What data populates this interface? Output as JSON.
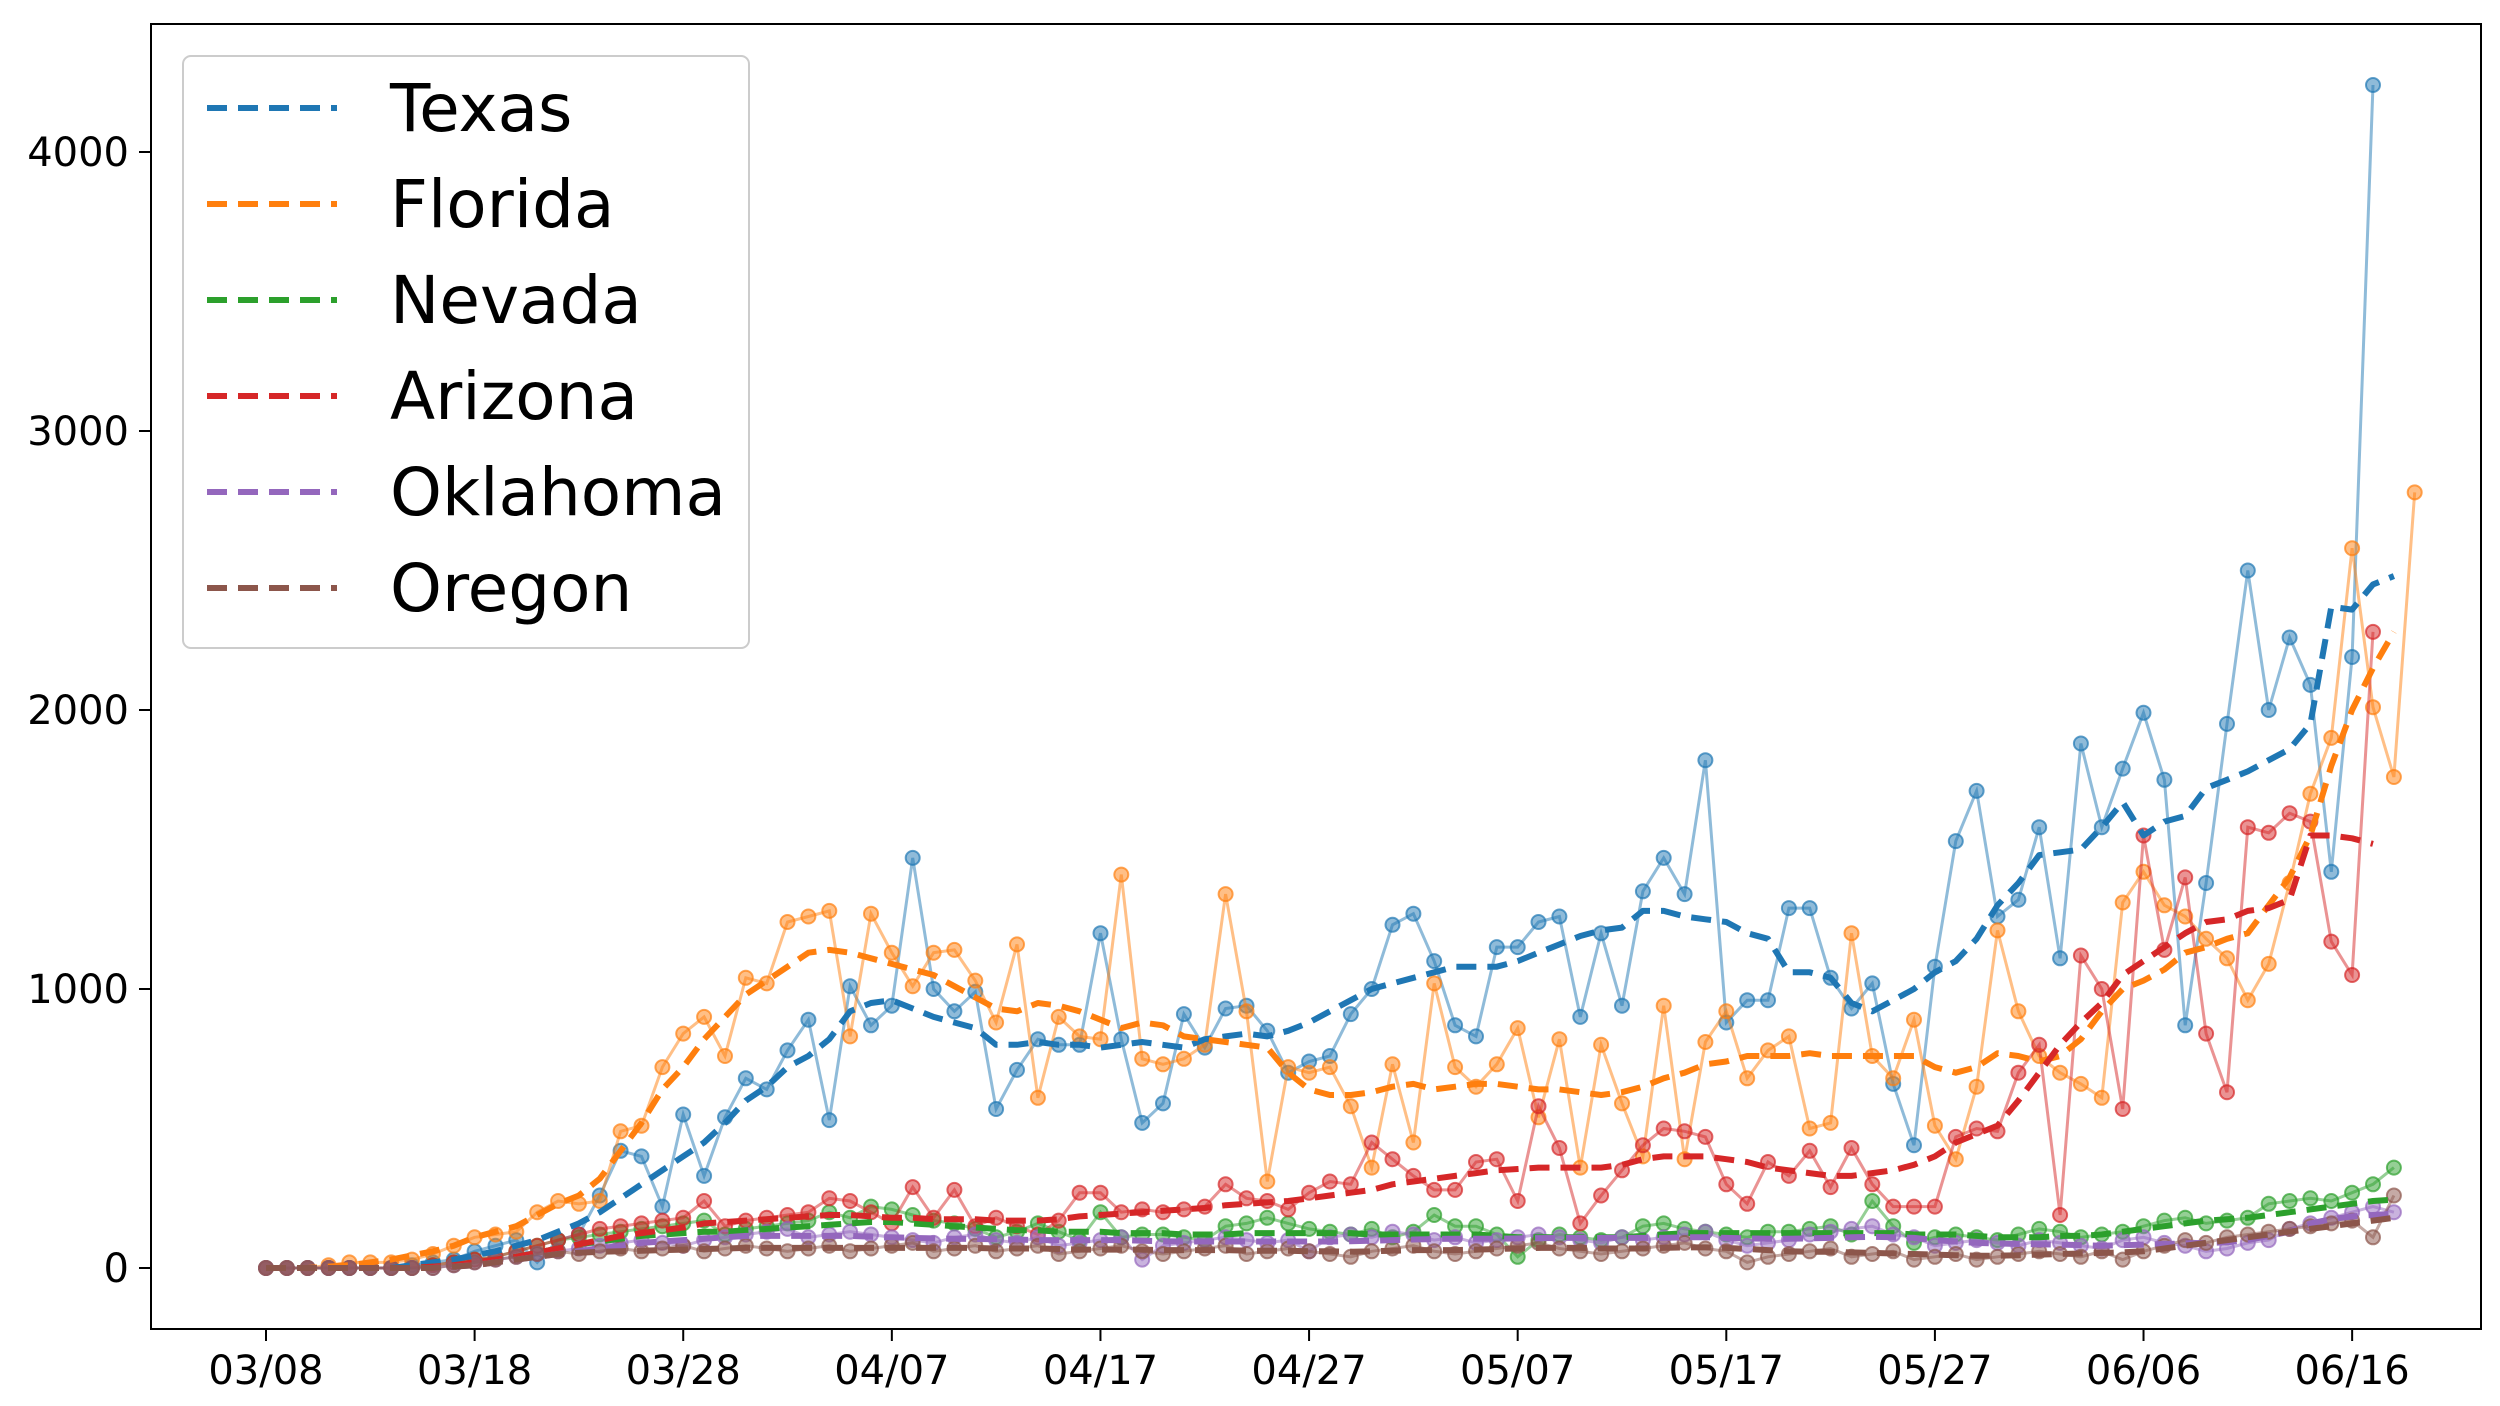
{
  "chart_data": {
    "type": "line",
    "title": "",
    "xlabel": "",
    "ylabel": "",
    "ylim": [
      -200,
      4450
    ],
    "y_ticks": [
      0,
      1000,
      2000,
      3000,
      4000
    ],
    "x_ticks": [
      "03/08",
      "03/18",
      "03/28",
      "04/07",
      "04/17",
      "04/27",
      "05/07",
      "05/17",
      "05/27",
      "06/06",
      "06/16"
    ],
    "x_start": "03/08",
    "x_end": "06/16",
    "legend_position": "upper-left",
    "grid": false,
    "series": [
      {
        "name": "Texas",
        "color": "#1f77b4",
        "daily": [
          0,
          0,
          0,
          0,
          0,
          0,
          0,
          10,
          20,
          30,
          60,
          80,
          100,
          20,
          100,
          120,
          260,
          420,
          400,
          220,
          550,
          330,
          540,
          680,
          640,
          780,
          890,
          530,
          1010,
          870,
          940,
          1470,
          1000,
          920,
          990,
          570,
          710,
          820,
          800,
          800,
          1200,
          820,
          520,
          590,
          910,
          790,
          930,
          940,
          850,
          700,
          740,
          760,
          910,
          1000,
          1230,
          1270,
          1100,
          870,
          830,
          1150,
          1150,
          1240,
          1260,
          900,
          1200,
          940,
          1350,
          1470,
          1340,
          1820,
          880,
          960,
          960,
          1290,
          1290,
          1040,
          930,
          1020,
          660,
          440,
          1080,
          1530,
          1710,
          1260,
          1320,
          1580,
          1110,
          1880,
          1580,
          1790,
          1990,
          1750,
          870,
          1380,
          1950,
          2500,
          2000,
          2260,
          2090,
          1420,
          2190,
          4240
        ],
        "avg": [
          0,
          0,
          0,
          0,
          0,
          0,
          0,
          10,
          20,
          30,
          45,
          60,
          80,
          100,
          130,
          160,
          200,
          250,
          300,
          350,
          400,
          450,
          520,
          600,
          650,
          720,
          760,
          820,
          920,
          950,
          960,
          930,
          900,
          880,
          860,
          800,
          800,
          810,
          800,
          800,
          790,
          800,
          810,
          800,
          790,
          820,
          830,
          840,
          830,
          850,
          880,
          920,
          960,
          1000,
          1020,
          1040,
          1060,
          1080,
          1080,
          1080,
          1100,
          1130,
          1160,
          1190,
          1210,
          1220,
          1280,
          1280,
          1260,
          1250,
          1240,
          1200,
          1180,
          1060,
          1060,
          1040,
          950,
          920,
          960,
          1000,
          1060,
          1100,
          1180,
          1300,
          1380,
          1480,
          1490,
          1500,
          1580,
          1670,
          1550,
          1600,
          1620,
          1720,
          1750,
          1780,
          1820,
          1860,
          1950,
          2370,
          2360,
          2450,
          2480
        ]
      },
      {
        "name": "Florida",
        "color": "#ff7f0e",
        "daily": [
          0,
          0,
          0,
          10,
          20,
          20,
          20,
          30,
          50,
          80,
          110,
          120,
          130,
          200,
          240,
          230,
          240,
          490,
          510,
          720,
          840,
          900,
          760,
          1040,
          1020,
          1240,
          1260,
          1280,
          830,
          1270,
          1130,
          1010,
          1130,
          1140,
          1030,
          880,
          1160,
          610,
          900,
          830,
          820,
          1410,
          750,
          730,
          750,
          800,
          1340,
          920,
          310,
          720,
          700,
          720,
          580,
          360,
          730,
          450,
          1020,
          720,
          650,
          730,
          860,
          540,
          820,
          360,
          800,
          590,
          400,
          940,
          390,
          810,
          920,
          680,
          780,
          830,
          500,
          520,
          1200,
          760,
          680,
          890,
          510,
          390,
          650,
          1210,
          920,
          760,
          700,
          660,
          610,
          1310,
          1420,
          1300,
          1260,
          1180,
          1110,
          960,
          1090,
          1380,
          1700,
          1900,
          2580,
          2010,
          1760,
          2780
        ],
        "avg": [
          0,
          0,
          0,
          5,
          10,
          20,
          30,
          45,
          60,
          80,
          110,
          130,
          150,
          190,
          230,
          260,
          320,
          420,
          520,
          640,
          720,
          820,
          900,
          980,
          1030,
          1080,
          1130,
          1140,
          1130,
          1110,
          1090,
          1070,
          1050,
          1010,
          970,
          930,
          920,
          950,
          940,
          920,
          890,
          860,
          880,
          870,
          830,
          820,
          810,
          800,
          790,
          700,
          640,
          620,
          620,
          630,
          650,
          660,
          640,
          650,
          660,
          660,
          650,
          640,
          640,
          630,
          620,
          630,
          650,
          680,
          700,
          730,
          740,
          760,
          760,
          760,
          770,
          760,
          760,
          760,
          760,
          760,
          720,
          700,
          720,
          770,
          760,
          740,
          760,
          820,
          920,
          1000,
          1030,
          1070,
          1130,
          1150,
          1180,
          1200,
          1300,
          1400,
          1550,
          1800,
          2000,
          2150,
          2280
        ]
      },
      {
        "name": "Nevada",
        "color": "#2ca02c",
        "daily": [
          0,
          0,
          0,
          0,
          0,
          0,
          0,
          0,
          10,
          20,
          30,
          40,
          60,
          80,
          100,
          110,
          120,
          130,
          140,
          150,
          160,
          170,
          120,
          140,
          150,
          160,
          170,
          200,
          180,
          220,
          210,
          190,
          170,
          160,
          140,
          110,
          130,
          160,
          130,
          100,
          200,
          110,
          120,
          120,
          110,
          100,
          150,
          160,
          180,
          160,
          140,
          130,
          120,
          140,
          110,
          130,
          190,
          150,
          150,
          120,
          40,
          100,
          120,
          110,
          100,
          110,
          150,
          160,
          140,
          130,
          120,
          110,
          130,
          130,
          140,
          150,
          120,
          240,
          150,
          90,
          110,
          120,
          110,
          100,
          120,
          140,
          130,
          110,
          120,
          130,
          150,
          170,
          180,
          160,
          170,
          180,
          230,
          240,
          250,
          240,
          270,
          300,
          360
        ],
        "avg": [
          0,
          0,
          0,
          0,
          0,
          0,
          0,
          0,
          5,
          10,
          20,
          30,
          40,
          55,
          70,
          85,
          95,
          105,
          115,
          120,
          125,
          130,
          130,
          135,
          140,
          145,
          150,
          155,
          160,
          165,
          165,
          160,
          155,
          150,
          145,
          140,
          135,
          135,
          130,
          130,
          130,
          125,
          125,
          125,
          120,
          120,
          120,
          125,
          125,
          125,
          125,
          125,
          125,
          120,
          120,
          120,
          120,
          120,
          120,
          115,
          110,
          110,
          110,
          110,
          110,
          110,
          115,
          120,
          125,
          125,
          125,
          125,
          125,
          125,
          125,
          125,
          125,
          125,
          125,
          120,
          120,
          120,
          115,
          110,
          110,
          110,
          115,
          115,
          120,
          130,
          140,
          150,
          160,
          170,
          175,
          180,
          190,
          200,
          210,
          220,
          230,
          240,
          245
        ]
      },
      {
        "name": "Arizona",
        "color": "#d62728",
        "daily": [
          0,
          0,
          0,
          0,
          0,
          0,
          0,
          0,
          10,
          20,
          30,
          40,
          60,
          80,
          100,
          120,
          140,
          150,
          160,
          170,
          180,
          240,
          150,
          170,
          180,
          190,
          200,
          250,
          240,
          200,
          160,
          290,
          180,
          280,
          150,
          180,
          150,
          120,
          170,
          270,
          270,
          200,
          210,
          200,
          210,
          220,
          300,
          250,
          240,
          210,
          270,
          310,
          300,
          450,
          390,
          330,
          280,
          280,
          380,
          390,
          240,
          580,
          430,
          160,
          260,
          350,
          440,
          500,
          490,
          470,
          300,
          230,
          380,
          330,
          420,
          290,
          430,
          300,
          220,
          220,
          220,
          470,
          500,
          490,
          700,
          800,
          190,
          1120,
          1000,
          570,
          1550,
          1140,
          1400,
          840,
          630,
          1580,
          1560,
          1630,
          1600,
          1170,
          1050,
          2280
        ],
        "avg": [
          0,
          0,
          0,
          0,
          0,
          0,
          0,
          0,
          5,
          10,
          20,
          30,
          40,
          55,
          70,
          85,
          100,
          115,
          125,
          135,
          145,
          160,
          165,
          170,
          175,
          180,
          185,
          190,
          190,
          185,
          180,
          180,
          175,
          175,
          175,
          170,
          170,
          170,
          175,
          185,
          190,
          195,
          200,
          205,
          210,
          215,
          225,
          230,
          235,
          240,
          250,
          260,
          270,
          280,
          300,
          310,
          320,
          330,
          340,
          350,
          355,
          360,
          360,
          360,
          360,
          370,
          390,
          400,
          400,
          400,
          390,
          380,
          360,
          350,
          340,
          330,
          330,
          340,
          350,
          370,
          400,
          450,
          480,
          510,
          600,
          700,
          800,
          880,
          950,
          1050,
          1100,
          1150,
          1200,
          1240,
          1250,
          1280,
          1290,
          1320,
          1550,
          1550,
          1540,
          1520
        ]
      },
      {
        "name": "Oklahoma",
        "color": "#9467bd",
        "daily": [
          0,
          0,
          0,
          0,
          0,
          0,
          0,
          0,
          0,
          10,
          20,
          30,
          40,
          50,
          60,
          70,
          80,
          90,
          100,
          90,
          80,
          100,
          110,
          120,
          130,
          140,
          110,
          120,
          130,
          120,
          110,
          100,
          90,
          110,
          120,
          100,
          90,
          110,
          80,
          90,
          100,
          110,
          30,
          80,
          90,
          100,
          110,
          100,
          90,
          100,
          60,
          110,
          120,
          110,
          130,
          120,
          100,
          110,
          90,
          100,
          110,
          120,
          110,
          100,
          90,
          110,
          100,
          110,
          120,
          130,
          100,
          80,
          90,
          100,
          120,
          130,
          140,
          150,
          120,
          110,
          80,
          90,
          100,
          90,
          80,
          100,
          90,
          80,
          70,
          100,
          110,
          90,
          80,
          60,
          70,
          90,
          100,
          140,
          160,
          180,
          200,
          220,
          200
        ],
        "avg": [
          0,
          0,
          0,
          0,
          0,
          0,
          0,
          0,
          0,
          5,
          10,
          20,
          30,
          40,
          50,
          60,
          70,
          80,
          90,
          95,
          100,
          105,
          110,
          115,
          115,
          115,
          115,
          115,
          115,
          112,
          110,
          108,
          106,
          105,
          104,
          103,
          102,
          100,
          100,
          100,
          100,
          100,
          98,
          96,
          95,
          95,
          95,
          95,
          95,
          95,
          95,
          95,
          96,
          98,
          100,
          102,
          104,
          105,
          105,
          105,
          106,
          107,
          108,
          108,
          108,
          108,
          108,
          108,
          110,
          110,
          108,
          106,
          105,
          105,
          106,
          108,
          110,
          112,
          110,
          108,
          100,
          95,
          90,
          88,
          86,
          85,
          84,
          82,
          80,
          82,
          84,
          86,
          88,
          90,
          92,
          100,
          115,
          130,
          160,
          175,
          185,
          190,
          195
        ]
      },
      {
        "name": "Oregon",
        "color": "#8c564b",
        "daily": [
          0,
          0,
          0,
          0,
          0,
          0,
          0,
          0,
          0,
          10,
          20,
          30,
          40,
          50,
          60,
          50,
          60,
          70,
          60,
          70,
          80,
          60,
          70,
          80,
          70,
          60,
          70,
          80,
          60,
          70,
          80,
          90,
          60,
          70,
          80,
          60,
          70,
          80,
          50,
          60,
          70,
          80,
          60,
          50,
          60,
          70,
          80,
          50,
          60,
          70,
          60,
          50,
          40,
          60,
          70,
          80,
          60,
          50,
          60,
          70,
          80,
          90,
          70,
          60,
          50,
          60,
          70,
          80,
          90,
          70,
          60,
          20,
          40,
          50,
          60,
          70,
          40,
          50,
          60,
          30,
          40,
          50,
          30,
          40,
          50,
          60,
          50,
          40,
          60,
          30,
          60,
          80,
          100,
          90,
          110,
          120,
          130,
          140,
          150,
          160,
          170,
          110,
          260
        ],
        "avg": [
          0,
          0,
          0,
          0,
          0,
          0,
          0,
          0,
          0,
          5,
          10,
          20,
          30,
          40,
          50,
          55,
          58,
          60,
          62,
          64,
          66,
          68,
          70,
          72,
          72,
          72,
          72,
          72,
          72,
          72,
          72,
          72,
          72,
          72,
          72,
          70,
          70,
          70,
          68,
          66,
          66,
          66,
          66,
          64,
          64,
          64,
          64,
          62,
          62,
          62,
          60,
          60,
          58,
          60,
          62,
          64,
          64,
          64,
          66,
          68,
          70,
          72,
          72,
          72,
          70,
          70,
          70,
          72,
          74,
          74,
          72,
          68,
          64,
          60,
          58,
          58,
          56,
          54,
          52,
          50,
          48,
          46,
          44,
          44,
          46,
          48,
          50,
          52,
          54,
          56,
          60,
          70,
          80,
          90,
          100,
          110,
          120,
          130,
          140,
          150,
          160,
          170,
          180
        ]
      }
    ]
  }
}
